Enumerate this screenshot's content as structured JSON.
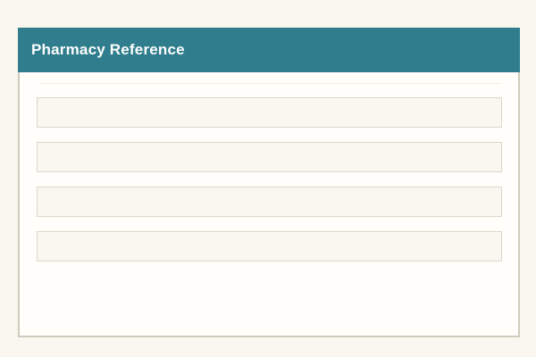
{
  "window": {
    "title": "Pharmacy Reference"
  },
  "content": {
    "rows": [
      {
        "text": ""
      },
      {
        "text": ""
      },
      {
        "text": ""
      },
      {
        "text": ""
      }
    ]
  },
  "colors": {
    "page_bg": "#f8f6ee",
    "header_bg": "#2f7d8d",
    "header_text": "#fdfdfd",
    "panel_bg": "#fffefb",
    "panel_border": "#cfccbe",
    "divider": "#f0ede1",
    "row_bg": "#f9f7f0",
    "row_border": "#dcd7c8"
  }
}
